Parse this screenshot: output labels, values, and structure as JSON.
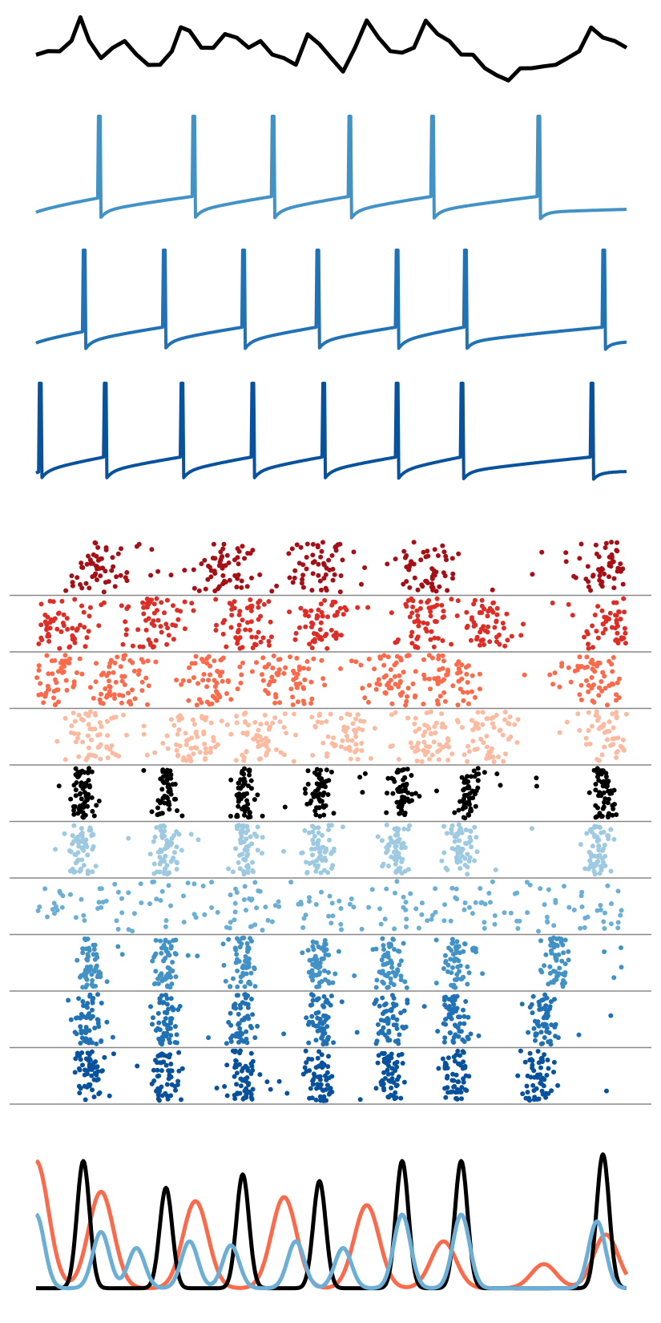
{
  "figure": {
    "background": "#ffffff"
  },
  "chart_data": [
    {
      "type": "line",
      "panel": "input-signal",
      "color": "#000000",
      "x_range": [
        0,
        1
      ],
      "series": [
        {
          "x": [
            0,
            0.02,
            0.04,
            0.06,
            0.075,
            0.09,
            0.11,
            0.13,
            0.15,
            0.17,
            0.19,
            0.21,
            0.23,
            0.245,
            0.26,
            0.28,
            0.3,
            0.32,
            0.34,
            0.36,
            0.38,
            0.4,
            0.42,
            0.44,
            0.46,
            0.48,
            0.5,
            0.52,
            0.54,
            0.56,
            0.58,
            0.6,
            0.62,
            0.64,
            0.66,
            0.68,
            0.7,
            0.72,
            0.74,
            0.76,
            0.78,
            0.8,
            0.82,
            0.84,
            0.86,
            0.88,
            0.9,
            0.92,
            0.94,
            0.96,
            0.98,
            1.0
          ],
          "y": [
            0.35,
            0.45,
            0.4,
            0.6,
            0.9,
            0.6,
            0.3,
            0.5,
            0.55,
            0.4,
            0.2,
            0.25,
            0.4,
            0.8,
            0.7,
            0.5,
            0.45,
            0.7,
            0.6,
            0.5,
            0.55,
            0.4,
            0.3,
            0.25,
            0.65,
            0.55,
            0.3,
            0.15,
            0.45,
            0.9,
            0.6,
            0.45,
            0.38,
            0.5,
            0.85,
            0.7,
            0.55,
            0.4,
            0.35,
            0.2,
            0.05,
            0.02,
            0.15,
            0.2,
            0.18,
            0.25,
            0.3,
            0.45,
            0.75,
            0.65,
            0.55,
            0.5
          ]
        }
      ]
    },
    {
      "type": "line",
      "panel": "membrane-traces",
      "x_range": [
        0,
        1
      ],
      "series": [
        {
          "color": "#4292c6",
          "spike_times": [
            0.105,
            0.265,
            0.4,
            0.53,
            0.67,
            0.85
          ]
        },
        {
          "color": "#2171b5",
          "spike_times": [
            0.08,
            0.215,
            0.35,
            0.475,
            0.61,
            0.725,
            0.96
          ]
        },
        {
          "color": "#08519c",
          "spike_times": [
            0.005,
            0.115,
            0.245,
            0.365,
            0.485,
            0.61,
            0.72,
            0.94
          ]
        }
      ]
    },
    {
      "type": "scatter",
      "panel": "spike-raster",
      "x_range": [
        0,
        1
      ],
      "rows": [
        {
          "color": "#a50f15",
          "burst_centers": [
            0.11,
            0.32,
            0.48,
            0.66,
            0.96
          ],
          "burst_width": 0.03
        },
        {
          "color": "#de2d26",
          "burst_centers": [
            0.04,
            0.2,
            0.35,
            0.48,
            0.65,
            0.76,
            0.98
          ],
          "burst_width": 0.025
        },
        {
          "color": "#fb6a4a",
          "burst_centers": [
            0.03,
            0.13,
            0.3,
            0.43,
            0.59,
            0.7,
            0.93
          ],
          "burst_width": 0.03
        },
        {
          "color": "#fcbba1",
          "burst_centers": [
            0.1,
            0.26,
            0.38,
            0.52,
            0.66,
            0.76,
            0.97
          ],
          "burst_width": 0.025
        },
        {
          "color": "#000000",
          "burst_centers": [
            0.08,
            0.22,
            0.35,
            0.48,
            0.62,
            0.73,
            0.96
          ],
          "burst_width": 0.01
        },
        {
          "color": "#9ecae1",
          "burst_centers": [
            0.08,
            0.22,
            0.35,
            0.48,
            0.61,
            0.72,
            0.95
          ],
          "burst_width": 0.012
        },
        {
          "color": "#6baed6",
          "burst_centers": [
            0.05,
            0.3,
            0.6,
            0.95
          ],
          "burst_width": 0.15
        },
        {
          "color": "#4292c6",
          "burst_centers": [
            0.09,
            0.22,
            0.35,
            0.48,
            0.6,
            0.71,
            0.88
          ],
          "burst_width": 0.012
        },
        {
          "color": "#2171b5",
          "burst_centers": [
            0.09,
            0.22,
            0.35,
            0.48,
            0.6,
            0.71,
            0.86
          ],
          "burst_width": 0.012
        },
        {
          "color": "#08519c",
          "burst_centers": [
            0.09,
            0.22,
            0.35,
            0.48,
            0.6,
            0.71,
            0.85
          ],
          "burst_width": 0.012
        }
      ]
    },
    {
      "type": "line",
      "panel": "population-rates",
      "x_range": [
        0,
        1
      ],
      "series": [
        {
          "color": "#fb6a4a",
          "peaks": [
            0.0,
            0.11,
            0.27,
            0.42,
            0.56,
            0.69,
            0.86,
            0.965
          ],
          "peak_heights": [
            0.95,
            0.72,
            0.65,
            0.68,
            0.62,
            0.35,
            0.18,
            0.4
          ],
          "width": 0.03
        },
        {
          "color": "#000000",
          "peaks": [
            0.08,
            0.22,
            0.35,
            0.48,
            0.62,
            0.72,
            0.96
          ],
          "peak_heights": [
            0.95,
            0.75,
            0.85,
            0.8,
            0.95,
            0.95,
            1.0
          ],
          "width": 0.015
        },
        {
          "color": "#6baed6",
          "peaks": [
            0.0,
            0.11,
            0.17,
            0.26,
            0.33,
            0.44,
            0.52,
            0.62,
            0.72,
            0.95
          ],
          "peak_heights": [
            0.55,
            0.42,
            0.3,
            0.35,
            0.32,
            0.35,
            0.3,
            0.55,
            0.55,
            0.5
          ],
          "width": 0.02
        }
      ]
    }
  ]
}
